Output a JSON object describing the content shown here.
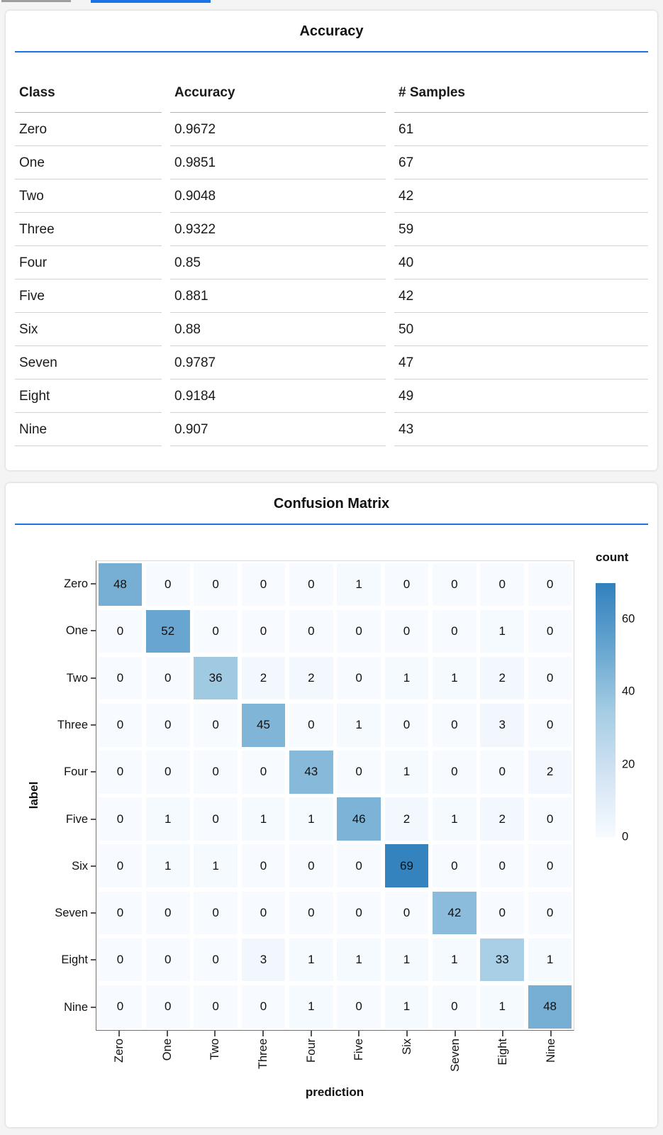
{
  "colors": {
    "accent_blue": "#1a73e8",
    "inactive_tab_gray": "#9e9e9e",
    "heatmap_scheme_stops": [
      "#f7fbff",
      "#d2e3f3",
      "#a3cce3",
      "#66a4cf",
      "#3181bd"
    ],
    "axis_line": "#707070"
  },
  "chart_data": [
    {
      "type": "table",
      "title": "Accuracy",
      "columns": [
        "Class",
        "Accuracy",
        "# Samples"
      ],
      "rows": [
        [
          "Zero",
          "0.9672",
          "61"
        ],
        [
          "One",
          "0.9851",
          "67"
        ],
        [
          "Two",
          "0.9048",
          "42"
        ],
        [
          "Three",
          "0.9322",
          "59"
        ],
        [
          "Four",
          "0.85",
          "40"
        ],
        [
          "Five",
          "0.881",
          "42"
        ],
        [
          "Six",
          "0.88",
          "50"
        ],
        [
          "Seven",
          "0.9787",
          "47"
        ],
        [
          "Eight",
          "0.9184",
          "49"
        ],
        [
          "Nine",
          "0.907",
          "43"
        ]
      ]
    },
    {
      "type": "heatmap",
      "title": "Confusion Matrix",
      "xlabel": "prediction",
      "ylabel": "label",
      "x_categories": [
        "Zero",
        "One",
        "Two",
        "Three",
        "Four",
        "Five",
        "Six",
        "Seven",
        "Eight",
        "Nine"
      ],
      "y_categories": [
        "Zero",
        "One",
        "Two",
        "Three",
        "Four",
        "Five",
        "Six",
        "Seven",
        "Eight",
        "Nine"
      ],
      "matrix": [
        [
          48,
          0,
          0,
          0,
          0,
          1,
          0,
          0,
          0,
          0
        ],
        [
          0,
          52,
          0,
          0,
          0,
          0,
          0,
          0,
          1,
          0
        ],
        [
          0,
          0,
          36,
          2,
          2,
          0,
          1,
          1,
          2,
          0
        ],
        [
          0,
          0,
          0,
          45,
          0,
          1,
          0,
          0,
          3,
          0
        ],
        [
          0,
          0,
          0,
          0,
          43,
          0,
          1,
          0,
          0,
          2
        ],
        [
          0,
          1,
          0,
          1,
          1,
          46,
          2,
          1,
          2,
          0
        ],
        [
          0,
          1,
          1,
          0,
          0,
          0,
          69,
          0,
          0,
          0
        ],
        [
          0,
          0,
          0,
          0,
          0,
          0,
          0,
          42,
          0,
          0
        ],
        [
          0,
          0,
          0,
          3,
          1,
          1,
          1,
          1,
          33,
          1
        ],
        [
          0,
          0,
          0,
          0,
          1,
          0,
          1,
          0,
          1,
          48
        ]
      ],
      "legend": {
        "title": "count",
        "ticks": [
          0,
          20,
          40,
          60
        ],
        "domain": [
          0,
          70
        ]
      },
      "color_scheme": "blues",
      "grid": false,
      "legend_position": "right"
    }
  ]
}
